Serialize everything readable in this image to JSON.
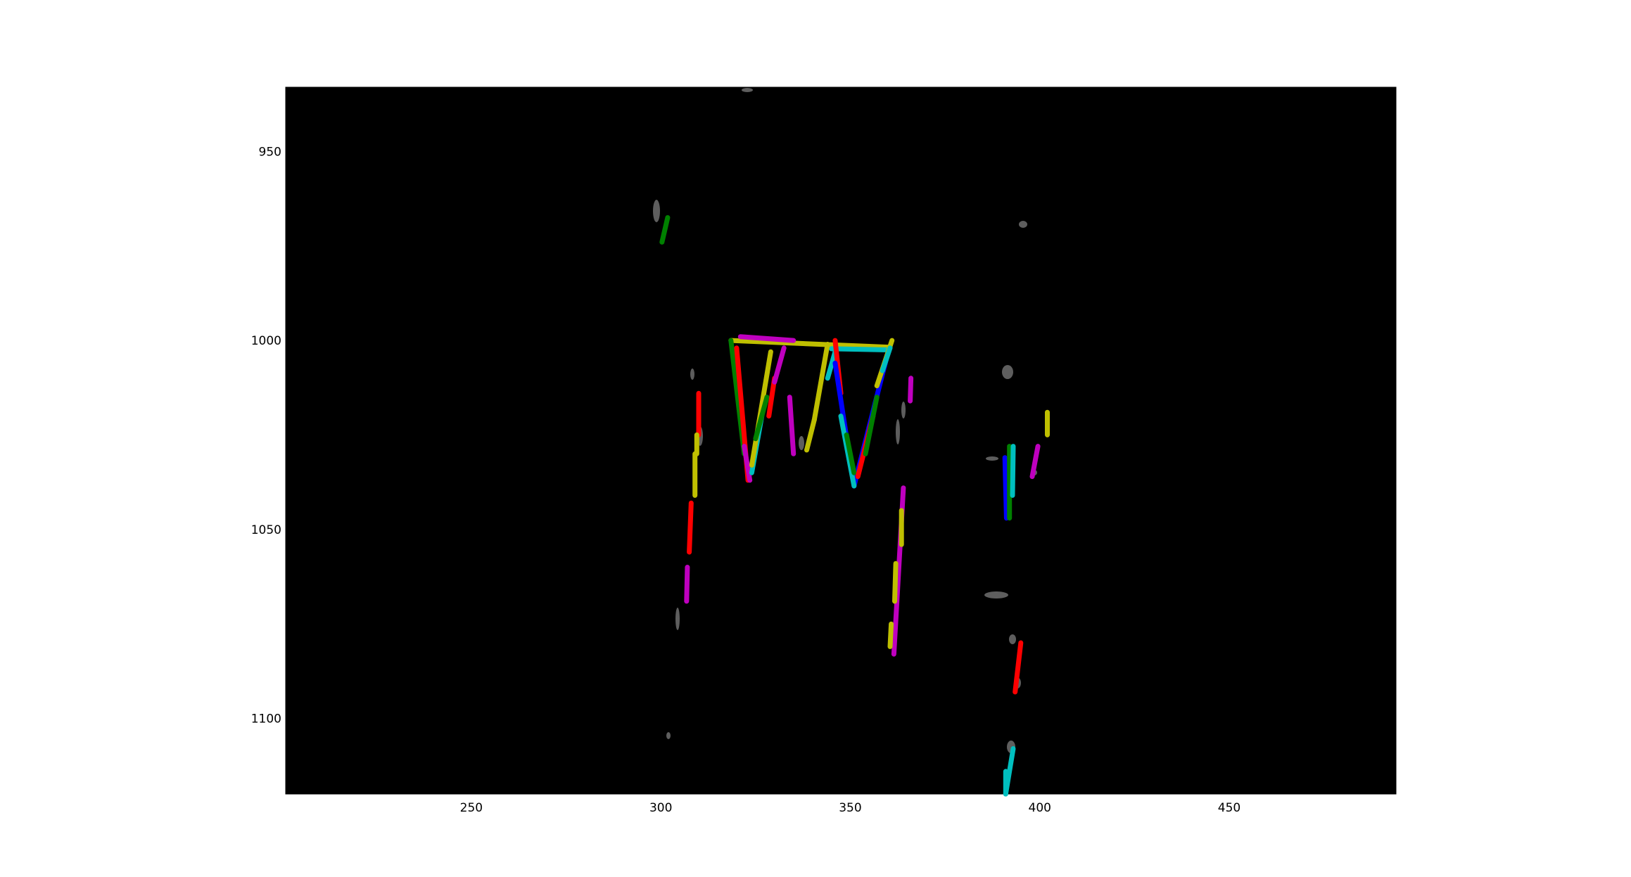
{
  "chart_data": {
    "type": "line",
    "title": "",
    "xlabel": "",
    "ylabel": "",
    "xlim": [
      201,
      494
    ],
    "ylim": [
      1120,
      933
    ],
    "y_inverted": true,
    "grid": false,
    "legend": "none",
    "background": "grayscale edge image (black)",
    "x_ticks": [
      250,
      300,
      350,
      400,
      450
    ],
    "y_ticks": [
      950,
      1000,
      1050,
      1100
    ],
    "x_tick_labels": [
      "250",
      "300",
      "350",
      "400",
      "450"
    ],
    "y_tick_labels": [
      "950",
      "1000",
      "1050",
      "1100"
    ],
    "segment_colors": {
      "r": "#ff0000",
      "g": "#008000",
      "b": "#0000ff",
      "c": "#00bfbf",
      "m": "#bf00bf",
      "y": "#bfbf00"
    },
    "segments": [
      {
        "color": "g",
        "x": [
          300.3,
          301.8
        ],
        "y": [
          974,
          967.5
        ]
      },
      {
        "color": "y",
        "x": [
          318.5,
          360.5
        ],
        "y": [
          1000,
          1001.8
        ]
      },
      {
        "color": "m",
        "x": [
          321,
          335
        ],
        "y": [
          999,
          1000
        ]
      },
      {
        "color": "c",
        "x": [
          345,
          360
        ],
        "y": [
          1002.2,
          1002.5
        ]
      },
      {
        "color": "g",
        "x": [
          318.5,
          322
        ],
        "y": [
          1000,
          1030
        ]
      },
      {
        "color": "r",
        "x": [
          320,
          323
        ],
        "y": [
          1002,
          1037
        ]
      },
      {
        "color": "m",
        "x": [
          322,
          323.5
        ],
        "y": [
          1028,
          1037
        ]
      },
      {
        "color": "c",
        "x": [
          324,
          327
        ],
        "y": [
          1035,
          1018
        ]
      },
      {
        "color": "y",
        "x": [
          324,
          329
        ],
        "y": [
          1033,
          1003
        ]
      },
      {
        "color": "g",
        "x": [
          325,
          328
        ],
        "y": [
          1026,
          1015
        ]
      },
      {
        "color": "r",
        "x": [
          328.5,
          330
        ],
        "y": [
          1020,
          1010
        ]
      },
      {
        "color": "m",
        "x": [
          330,
          332.5
        ],
        "y": [
          1011,
          1002
        ]
      },
      {
        "color": "m",
        "x": [
          334,
          335
        ],
        "y": [
          1015,
          1030
        ]
      },
      {
        "color": "y",
        "x": [
          338.5,
          340.5
        ],
        "y": [
          1029,
          1021
        ]
      },
      {
        "color": "y",
        "x": [
          340.5,
          344
        ],
        "y": [
          1021,
          1001
        ]
      },
      {
        "color": "c",
        "x": [
          344,
          346
        ],
        "y": [
          1010,
          1003
        ]
      },
      {
        "color": "r",
        "x": [
          346,
          347.5
        ],
        "y": [
          1000,
          1014
        ]
      },
      {
        "color": "b",
        "x": [
          346,
          351
        ],
        "y": [
          1006,
          1038.5
        ]
      },
      {
        "color": "b",
        "x": [
          351,
          360
        ],
        "y": [
          1038.5,
          1003
        ]
      },
      {
        "color": "c",
        "x": [
          347.5,
          351
        ],
        "y": [
          1020,
          1038.5
        ]
      },
      {
        "color": "g",
        "x": [
          349,
          351
        ],
        "y": [
          1025,
          1035
        ]
      },
      {
        "color": "r",
        "x": [
          352,
          356
        ],
        "y": [
          1036,
          1020
        ]
      },
      {
        "color": "g",
        "x": [
          354,
          357
        ],
        "y": [
          1030,
          1015
        ]
      },
      {
        "color": "y",
        "x": [
          357,
          361
        ],
        "y": [
          1012,
          1000
        ]
      },
      {
        "color": "c",
        "x": [
          358.5,
          360.5
        ],
        "y": [
          1008,
          1002
        ]
      },
      {
        "color": "r",
        "x": [
          310,
          310
        ],
        "y": [
          1014,
          1025
        ]
      },
      {
        "color": "y",
        "x": [
          309.5,
          309.5
        ],
        "y": [
          1025,
          1030
        ]
      },
      {
        "color": "y",
        "x": [
          309,
          309
        ],
        "y": [
          1030,
          1041
        ]
      },
      {
        "color": "r",
        "x": [
          308,
          307.5
        ],
        "y": [
          1043,
          1056
        ]
      },
      {
        "color": "m",
        "x": [
          307,
          306.8
        ],
        "y": [
          1060,
          1069
        ]
      },
      {
        "color": "m",
        "x": [
          366,
          365.8
        ],
        "y": [
          1010,
          1016
        ]
      },
      {
        "color": "m",
        "x": [
          364,
          361.5
        ],
        "y": [
          1039,
          1083
        ]
      },
      {
        "color": "y",
        "x": [
          363.5,
          363.5
        ],
        "y": [
          1045,
          1054
        ]
      },
      {
        "color": "y",
        "x": [
          362,
          361.7
        ],
        "y": [
          1059,
          1069
        ]
      },
      {
        "color": "y",
        "x": [
          360.8,
          360.5
        ],
        "y": [
          1075,
          1081
        ]
      },
      {
        "color": "b",
        "x": [
          390.8,
          391.2
        ],
        "y": [
          1031,
          1047
        ]
      },
      {
        "color": "g",
        "x": [
          392,
          392
        ],
        "y": [
          1028,
          1047
        ]
      },
      {
        "color": "c",
        "x": [
          393,
          392.8
        ],
        "y": [
          1028,
          1041
        ]
      },
      {
        "color": "m",
        "x": [
          398,
          399.5
        ],
        "y": [
          1036,
          1028
        ]
      },
      {
        "color": "y",
        "x": [
          402,
          402
        ],
        "y": [
          1019,
          1025
        ]
      },
      {
        "color": "r",
        "x": [
          393.5,
          395
        ],
        "y": [
          1093,
          1080
        ]
      },
      {
        "color": "c",
        "x": [
          391,
          393
        ],
        "y": [
          1120,
          1108
        ]
      },
      {
        "color": "c",
        "x": [
          391,
          391
        ],
        "y": [
          1114,
          1120
        ]
      }
    ]
  }
}
